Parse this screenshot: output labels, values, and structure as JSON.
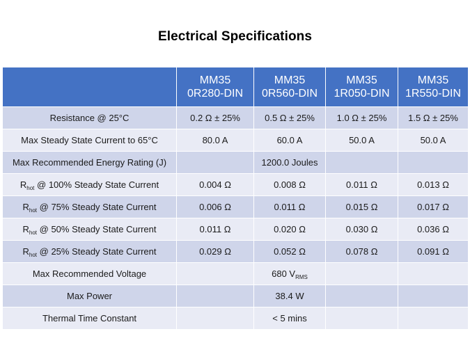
{
  "title": "Electrical Specifications",
  "table": {
    "columns": [
      {
        "line1": "MM35",
        "line2": "0R280-DIN"
      },
      {
        "line1": "MM35",
        "line2": "0R560-DIN"
      },
      {
        "line1": "MM35",
        "line2": "1R050-DIN"
      },
      {
        "line1": "MM35",
        "line2": "1R550-DIN"
      }
    ],
    "rows": [
      {
        "label": "Resistance @ 25°C",
        "values": [
          "0.2 Ω ± 25%",
          "0.5 Ω ± 25%",
          "1.0 Ω ± 25%",
          "1.5 Ω ± 25%"
        ]
      },
      {
        "label": "Max Steady State Current to 65°C",
        "values": [
          "80.0 A",
          "60.0 A",
          "50.0 A",
          "50.0 A"
        ]
      },
      {
        "label": "Max Recommended Energy Rating (J)",
        "values": [
          "",
          "1200.0 Joules",
          "",
          ""
        ]
      },
      {
        "label_main": "R",
        "label_sub": "hot",
        "label_rest": " @ 100% Steady State Current",
        "values": [
          "0.004 Ω",
          "0.008 Ω",
          "0.011 Ω",
          "0.013 Ω"
        ]
      },
      {
        "label_main": "R",
        "label_sub": "hot",
        "label_rest": " @ 75% Steady State Current",
        "values": [
          "0.006 Ω",
          "0.011 Ω",
          "0.015 Ω",
          "0.017 Ω"
        ]
      },
      {
        "label_main": "R",
        "label_sub": "hot",
        "label_rest": " @ 50% Steady State Current",
        "values": [
          "0.011 Ω",
          "0.020 Ω",
          "0.030 Ω",
          "0.036 Ω"
        ]
      },
      {
        "label_main": "R",
        "label_sub": "hot",
        "label_rest": " @ 25% Steady State Current",
        "values": [
          "0.029 Ω",
          "0.052 Ω",
          "0.078 Ω",
          "0.091 Ω"
        ]
      },
      {
        "label": "Max Recommended Voltage",
        "value_main": "680 V",
        "value_sub": "RMS"
      },
      {
        "label": "Max Power",
        "values": [
          "",
          "38.4 W",
          "",
          ""
        ]
      },
      {
        "label": "Thermal Time Constant",
        "values": [
          "",
          "< 5 mins",
          "",
          ""
        ]
      }
    ]
  }
}
